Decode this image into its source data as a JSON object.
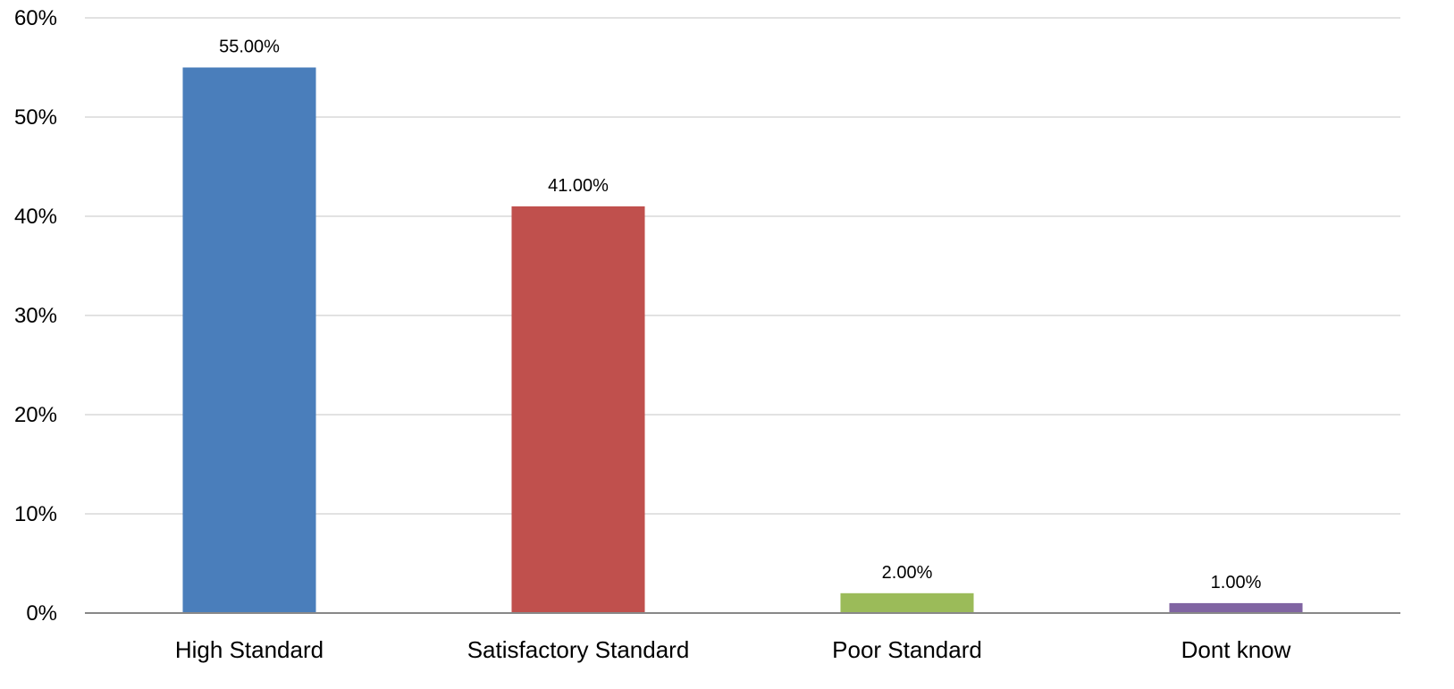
{
  "chart_data": {
    "type": "bar",
    "categories": [
      "High Standard",
      "Satisfactory Standard",
      "Poor Standard",
      "Dont know"
    ],
    "values": [
      55,
      41,
      2,
      1
    ],
    "data_labels": [
      "55.00%",
      "41.00%",
      "2.00%",
      "1.00%"
    ],
    "colors": [
      "#4a7ebb",
      "#c0504d",
      "#9bbb59",
      "#8064a2"
    ],
    "ylim": [
      0,
      60
    ],
    "yticks": [
      0,
      10,
      20,
      30,
      40,
      50,
      60
    ],
    "ytick_labels": [
      "0%",
      "10%",
      "20%",
      "30%",
      "40%",
      "50%",
      "60%"
    ],
    "grid": true,
    "legend": "none"
  }
}
